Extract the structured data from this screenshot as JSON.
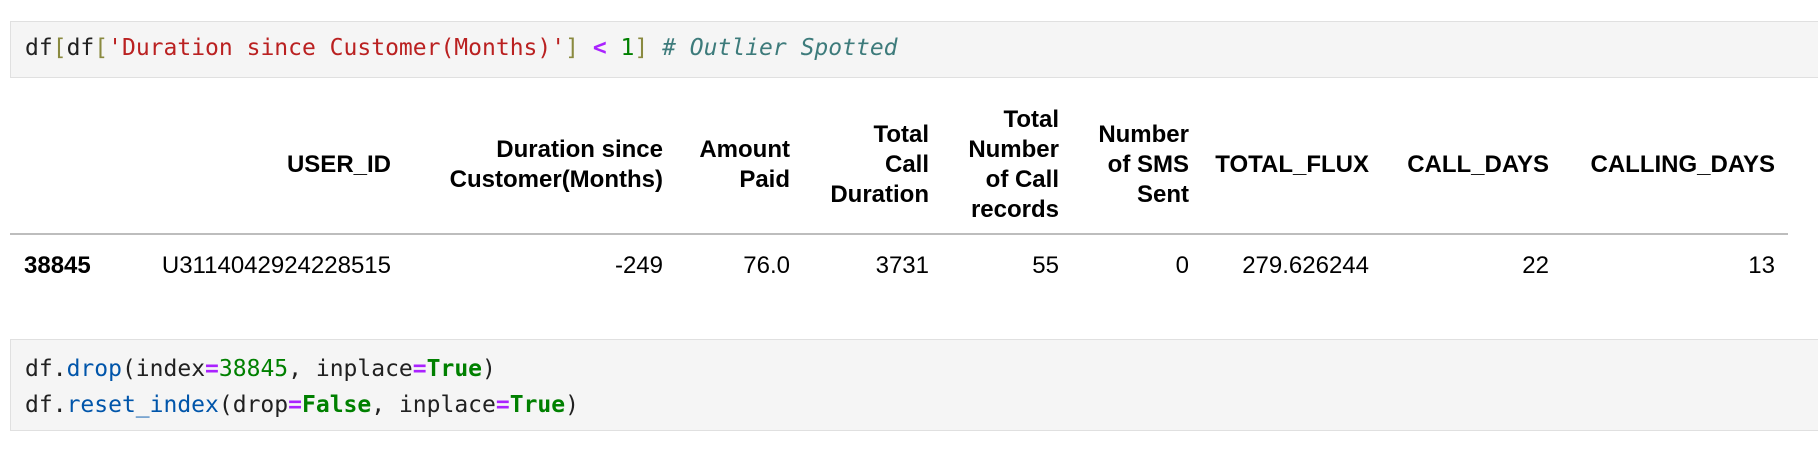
{
  "cell1": {
    "tokens": {
      "df1": "df",
      "ob1": "[",
      "df2": "df",
      "ob2": "[",
      "str": "'Duration since Customer(Months)'",
      "cb2": "]",
      "op": "<",
      "num": "1",
      "cb1": "]",
      "comment": "# Outlier Spotted"
    }
  },
  "table": {
    "headers": [
      "",
      "USER_ID",
      "Duration since Customer(Months)",
      "Amount Paid",
      "Total Call Duration",
      "Total Number of Call records",
      "Number of SMS Sent",
      "TOTAL_FLUX",
      "CALL_DAYS",
      "CALLING_DAYS"
    ],
    "header_lines": [
      [
        ""
      ],
      [
        "USER_ID"
      ],
      [
        "Duration since",
        "Customer(Months)"
      ],
      [
        "Amount",
        "Paid"
      ],
      [
        "Total",
        "Call",
        "Duration"
      ],
      [
        "Total",
        "Number",
        "of Call",
        "records"
      ],
      [
        "Number",
        "of SMS",
        "Sent"
      ],
      [
        "TOTAL_FLUX"
      ],
      [
        "CALL_DAYS"
      ],
      [
        "CALLING_DAYS"
      ]
    ],
    "rows": [
      {
        "index": "38845",
        "cells": [
          "U3114042924228515",
          "-249",
          "76.0",
          "3731",
          "55",
          "0",
          "279.626244",
          "22",
          "13"
        ]
      }
    ]
  },
  "cell2": {
    "line1": {
      "obj": "df",
      "dot": ".",
      "method": "drop",
      "open": "(index",
      "eq": "=",
      "num": "38845",
      "mid": ", inplace",
      "eq2": "=",
      "kw": "True",
      "close": ")"
    },
    "line2": {
      "obj": "df",
      "dot": ".",
      "method": "reset_index",
      "open": "(drop",
      "eq": "=",
      "kw": "False",
      "mid": ", inplace",
      "eq2": "=",
      "kw2": "True",
      "close": ")"
    }
  }
}
